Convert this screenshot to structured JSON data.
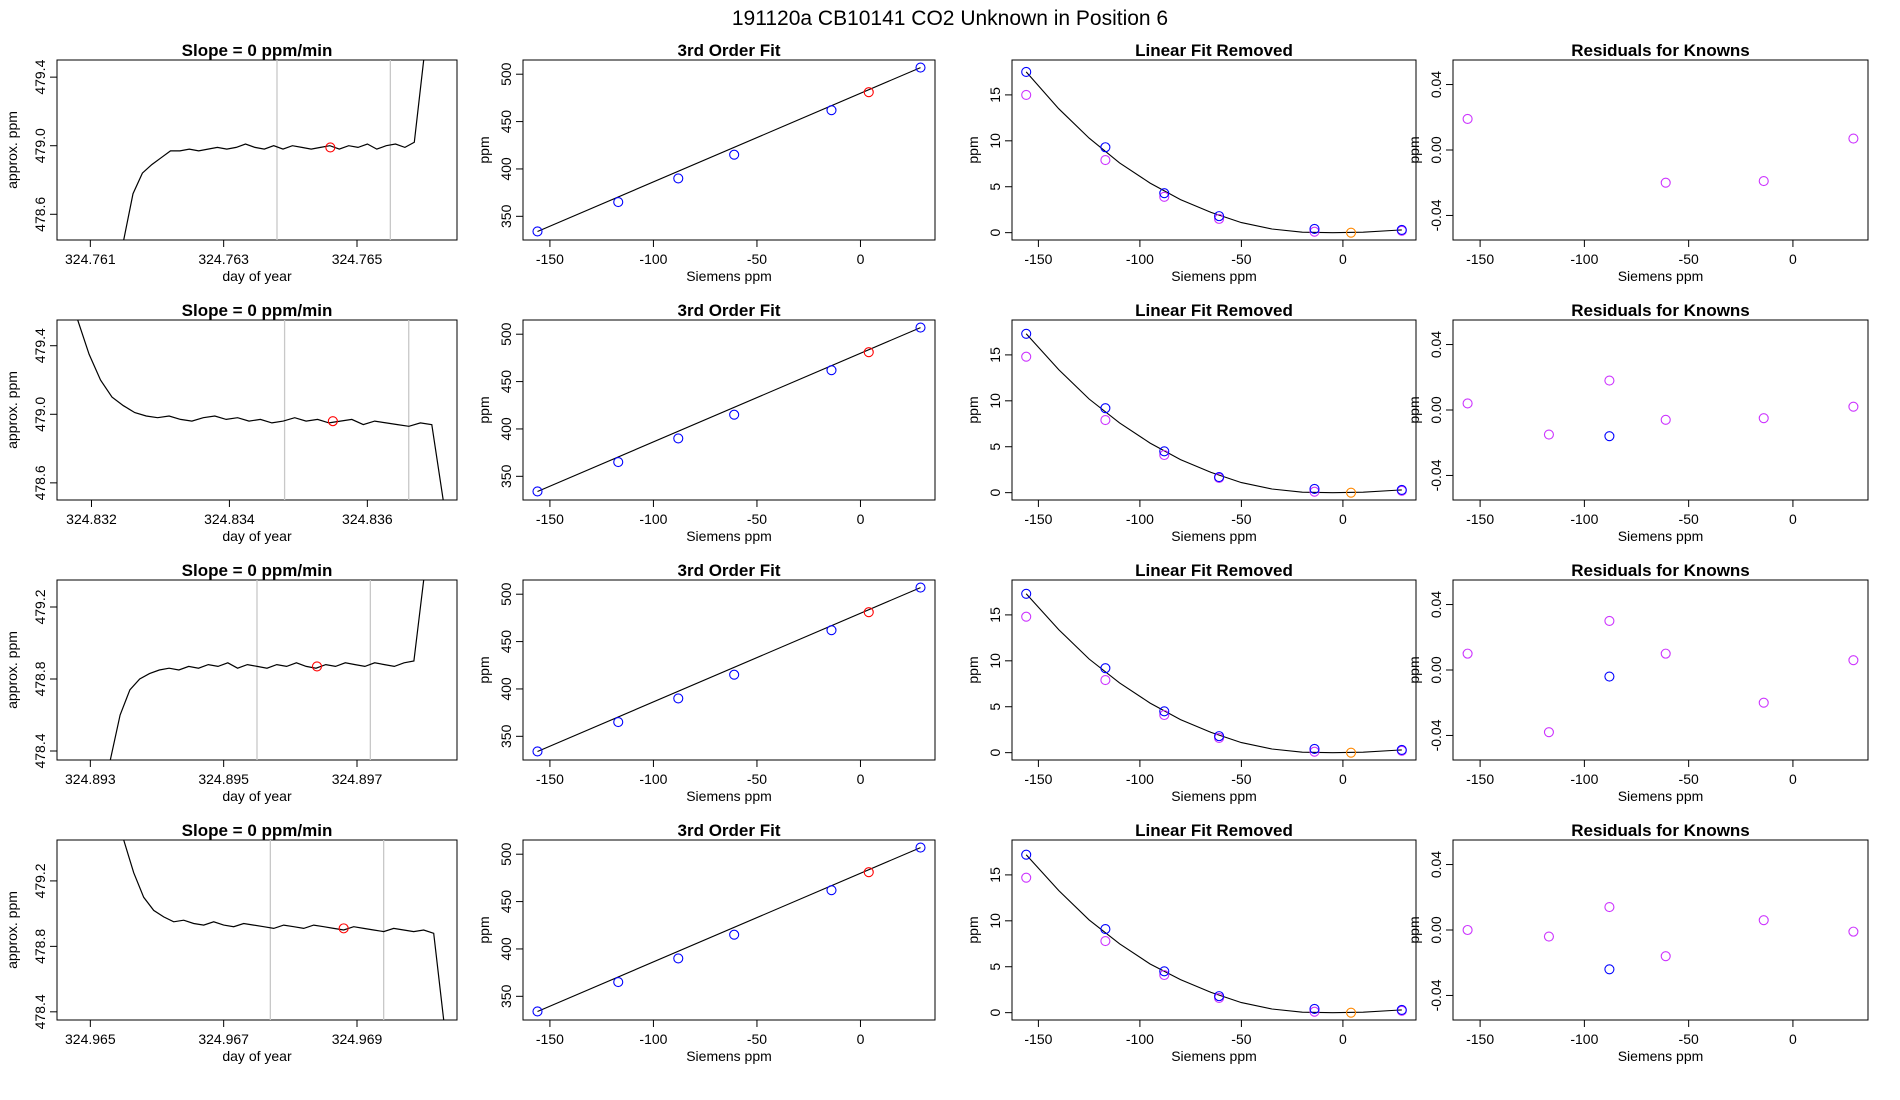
{
  "figure": {
    "title": "191120a     CB10141    CO2 Unknown in Position  6"
  },
  "colors": {
    "trace": "#000000",
    "vline": "#c8c8c8",
    "known": "#0000ff",
    "unknown": "#ff0000",
    "removed_known": "#cc33ff",
    "removed_unknown": "#ff8800",
    "residual": "#cc33ff"
  },
  "chart_data": [
    {
      "type": "line",
      "row": 1,
      "col": 1,
      "title": "Slope =  0  ppm/min",
      "xlabel": "day of year",
      "ylabel": "approx. ppm",
      "xlim": [
        324.7605,
        324.7665
      ],
      "ylim": [
        478.45,
        479.5
      ],
      "xticks": [
        324.761,
        324.763,
        324.765
      ],
      "xtick_labels": [
        "324.761",
        "324.763",
        "324.765"
      ],
      "yticks": [
        478.6,
        479.0,
        479.4
      ],
      "ytick_labels": [
        "478.6",
        "479.0",
        "479.4"
      ],
      "vlines": [
        324.7638,
        324.7655
      ],
      "marker": {
        "x": 324.7646,
        "y": 478.99
      },
      "trace": {
        "x0": 324.7615,
        "x1": 324.766,
        "y": [
          478.45,
          478.72,
          478.84,
          478.89,
          478.93,
          478.97,
          478.97,
          478.98,
          478.97,
          478.98,
          478.99,
          478.98,
          478.99,
          479.01,
          478.99,
          478.98,
          479.0,
          478.98,
          479.0,
          478.99,
          478.98,
          478.99,
          479.0,
          478.98,
          479.0,
          478.99,
          479.01,
          478.98,
          479.0,
          479.01,
          478.99,
          479.02,
          479.5
        ]
      }
    },
    {
      "type": "scatter",
      "row": 1,
      "col": 2,
      "title": "3rd Order Fit",
      "xlabel": "Siemens ppm",
      "ylabel": "ppm",
      "xlim": [
        -163,
        36
      ],
      "ylim": [
        325,
        515
      ],
      "xticks": [
        -150,
        -100,
        -50,
        0
      ],
      "xtick_labels": [
        "-150",
        "-100",
        "-50",
        "0"
      ],
      "yticks": [
        350,
        400,
        450,
        500
      ],
      "ytick_labels": [
        "350",
        "400",
        "450",
        "500"
      ],
      "known_x": [
        -156,
        -117,
        -88,
        -61,
        -14,
        29
      ],
      "known_y": [
        334,
        365,
        390,
        415,
        462,
        507
      ],
      "unknown": {
        "x": 4,
        "y": 481
      },
      "fit": {
        "x": [
          -156,
          29
        ],
        "y": [
          334,
          507
        ]
      }
    },
    {
      "type": "scatter",
      "row": 1,
      "col": 3,
      "title": "Linear Fit Removed",
      "xlabel": "Siemens ppm",
      "ylabel": "ppm",
      "xlim": [
        -163,
        36
      ],
      "ylim": [
        -0.8,
        18.8
      ],
      "xticks": [
        -150,
        -100,
        -50,
        0
      ],
      "xtick_labels": [
        "-150",
        "-100",
        "-50",
        "0"
      ],
      "yticks": [
        0,
        5,
        10,
        15
      ],
      "ytick_labels": [
        "0",
        "5",
        "10",
        "15"
      ],
      "known_x": [
        -156,
        -117,
        -88,
        -61,
        -14,
        29
      ],
      "known_y": [
        17.5,
        9.3,
        4.3,
        1.8,
        0.4,
        0.3
      ],
      "magenta_x": [
        -156,
        -117,
        -88,
        -61,
        -14,
        29
      ],
      "magenta_y": [
        15.0,
        7.9,
        3.9,
        1.5,
        0.1,
        0.2
      ],
      "unknown": {
        "x": 4,
        "y": 0.0
      },
      "fit": {
        "x": [
          -156,
          -140,
          -125,
          -110,
          -95,
          -80,
          -65,
          -50,
          -35,
          -20,
          -5,
          10,
          29
        ],
        "y": [
          17.5,
          13.5,
          10.3,
          7.6,
          5.4,
          3.6,
          2.2,
          1.1,
          0.4,
          0.05,
          0.0,
          0.05,
          0.3
        ]
      }
    },
    {
      "type": "scatter",
      "row": 1,
      "col": 4,
      "title": "Residuals for Knowns",
      "xlabel": "Siemens ppm",
      "ylabel": "ppm",
      "xlim": [
        -163,
        36
      ],
      "ylim": [
        -0.055,
        0.055
      ],
      "xticks": [
        -150,
        -100,
        -50,
        0
      ],
      "xtick_labels": [
        "-150",
        "-100",
        "-50",
        "0"
      ],
      "yticks": [
        -0.04,
        0.0,
        0.04
      ],
      "ytick_labels": [
        "-0.04",
        "0.00",
        "0.04"
      ],
      "magenta_x": [
        -156,
        -61,
        -14,
        29
      ],
      "magenta_y": [
        0.019,
        -0.02,
        -0.019,
        0.007
      ],
      "blue_x": [],
      "blue_y": []
    },
    {
      "type": "line",
      "row": 2,
      "col": 1,
      "title": "Slope =  0  ppm/min",
      "xlabel": "day of year",
      "ylabel": "approx. ppm",
      "xlim": [
        324.8315,
        324.8373
      ],
      "ylim": [
        478.5,
        479.55
      ],
      "xticks": [
        324.832,
        324.834,
        324.836
      ],
      "xtick_labels": [
        "324.832",
        "324.834",
        "324.836"
      ],
      "vlines": [
        324.8348,
        324.8366
      ],
      "yticks": [
        478.6,
        479.0,
        479.4
      ],
      "ytick_labels": [
        "478.6",
        "479.0",
        "479.4"
      ],
      "marker": {
        "x": 324.8355,
        "y": 478.96
      },
      "trace": {
        "x0": 324.8318,
        "x1": 324.8371,
        "y": [
          479.55,
          479.35,
          479.2,
          479.1,
          479.05,
          479.01,
          478.99,
          478.98,
          478.99,
          478.97,
          478.96,
          478.98,
          478.99,
          478.97,
          478.98,
          478.96,
          478.97,
          478.95,
          478.96,
          478.98,
          478.96,
          478.97,
          478.95,
          478.96,
          478.97,
          478.94,
          478.96,
          478.95,
          478.94,
          478.93,
          478.95,
          478.94,
          478.5
        ]
      }
    },
    {
      "type": "scatter",
      "row": 2,
      "col": 2,
      "title": "3rd Order Fit",
      "xlabel": "Siemens ppm",
      "ylabel": "ppm",
      "xlim": [
        -163,
        36
      ],
      "ylim": [
        325,
        515
      ],
      "xticks": [
        -150,
        -100,
        -50,
        0
      ],
      "xtick_labels": [
        "-150",
        "-100",
        "-50",
        "0"
      ],
      "yticks": [
        350,
        400,
        450,
        500
      ],
      "ytick_labels": [
        "350",
        "400",
        "450",
        "500"
      ],
      "known_x": [
        -156,
        -117,
        -88,
        -61,
        -14,
        29
      ],
      "known_y": [
        334,
        365,
        390,
        415,
        462,
        507
      ],
      "unknown": {
        "x": 4,
        "y": 481
      },
      "fit": {
        "x": [
          -156,
          29
        ],
        "y": [
          334,
          507
        ]
      }
    },
    {
      "type": "scatter",
      "row": 2,
      "col": 3,
      "title": "Linear Fit Removed",
      "xlabel": "Siemens ppm",
      "ylabel": "ppm",
      "xlim": [
        -163,
        36
      ],
      "ylim": [
        -0.8,
        18.8
      ],
      "xticks": [
        -150,
        -100,
        -50,
        0
      ],
      "xtick_labels": [
        "-150",
        "-100",
        "-50",
        "0"
      ],
      "yticks": [
        0,
        5,
        10,
        15
      ],
      "ytick_labels": [
        "0",
        "5",
        "10",
        "15"
      ],
      "known_x": [
        -156,
        -117,
        -88,
        -61,
        -14,
        29
      ],
      "known_y": [
        17.3,
        9.2,
        4.5,
        1.7,
        0.4,
        0.3
      ],
      "magenta_x": [
        -156,
        -117,
        -88,
        -61,
        -14,
        29
      ],
      "magenta_y": [
        14.8,
        7.9,
        4.1,
        1.6,
        0.1,
        0.2
      ],
      "unknown": {
        "x": 4,
        "y": 0.0
      },
      "fit": {
        "x": [
          -156,
          -140,
          -125,
          -110,
          -95,
          -80,
          -65,
          -50,
          -35,
          -20,
          -5,
          10,
          29
        ],
        "y": [
          17.3,
          13.4,
          10.2,
          7.6,
          5.4,
          3.6,
          2.2,
          1.1,
          0.4,
          0.05,
          0.0,
          0.05,
          0.3
        ]
      }
    },
    {
      "type": "scatter",
      "row": 2,
      "col": 4,
      "title": "Residuals for Knowns",
      "xlabel": "Siemens ppm",
      "ylabel": "ppm",
      "xlim": [
        -163,
        36
      ],
      "ylim": [
        -0.055,
        0.055
      ],
      "xticks": [
        -150,
        -100,
        -50,
        0
      ],
      "xtick_labels": [
        "-150",
        "-100",
        "-50",
        "0"
      ],
      "yticks": [
        -0.04,
        0.0,
        0.04
      ],
      "ytick_labels": [
        "-0.04",
        "0.00",
        "0.04"
      ],
      "magenta_x": [
        -156,
        -117,
        -88,
        -61,
        -14,
        29
      ],
      "magenta_y": [
        0.004,
        -0.015,
        0.018,
        -0.006,
        -0.005,
        0.002
      ],
      "blue_x": [
        -88
      ],
      "blue_y": [
        -0.016
      ]
    },
    {
      "type": "line",
      "row": 3,
      "col": 1,
      "title": "Slope =  0  ppm/min",
      "xlabel": "day of year",
      "ylabel": "approx. ppm",
      "xlim": [
        324.8925,
        324.8985
      ],
      "ylim": [
        478.35,
        479.35
      ],
      "xticks": [
        324.893,
        324.895,
        324.897
      ],
      "xtick_labels": [
        "324.893",
        "324.895",
        "324.897"
      ],
      "yticks": [
        478.4,
        478.8,
        479.2
      ],
      "ytick_labels": [
        "478.4",
        "478.8",
        "479.2"
      ],
      "vlines": [
        324.8955,
        324.8972
      ],
      "marker": {
        "x": 324.8964,
        "y": 478.87
      },
      "trace": {
        "x0": 324.8933,
        "x1": 324.898,
        "y": [
          478.35,
          478.6,
          478.74,
          478.8,
          478.83,
          478.85,
          478.86,
          478.85,
          478.87,
          478.86,
          478.88,
          478.87,
          478.89,
          478.86,
          478.88,
          478.87,
          478.86,
          478.88,
          478.87,
          478.89,
          478.87,
          478.86,
          478.88,
          478.87,
          478.89,
          478.88,
          478.87,
          478.89,
          478.88,
          478.87,
          478.89,
          478.9,
          479.35
        ]
      }
    },
    {
      "type": "scatter",
      "row": 3,
      "col": 2,
      "title": "3rd Order Fit",
      "xlabel": "Siemens ppm",
      "ylabel": "ppm",
      "xlim": [
        -163,
        36
      ],
      "ylim": [
        325,
        515
      ],
      "xticks": [
        -150,
        -100,
        -50,
        0
      ],
      "xtick_labels": [
        "-150",
        "-100",
        "-50",
        "0"
      ],
      "yticks": [
        350,
        400,
        450,
        500
      ],
      "ytick_labels": [
        "350",
        "400",
        "450",
        "500"
      ],
      "known_x": [
        -156,
        -117,
        -88,
        -61,
        -14,
        29
      ],
      "known_y": [
        334,
        365,
        390,
        415,
        462,
        507
      ],
      "unknown": {
        "x": 4,
        "y": 481
      },
      "fit": {
        "x": [
          -156,
          29
        ],
        "y": [
          334,
          507
        ]
      }
    },
    {
      "type": "scatter",
      "row": 3,
      "col": 3,
      "title": "Linear Fit Removed",
      "xlabel": "Siemens ppm",
      "ylabel": "ppm",
      "xlim": [
        -163,
        36
      ],
      "ylim": [
        -0.8,
        18.8
      ],
      "xticks": [
        -150,
        -100,
        -50,
        0
      ],
      "xtick_labels": [
        "-150",
        "-100",
        "-50",
        "0"
      ],
      "yticks": [
        0,
        5,
        10,
        15
      ],
      "ytick_labels": [
        "0",
        "5",
        "10",
        "15"
      ],
      "known_x": [
        -156,
        -117,
        -88,
        -61,
        -14,
        29
      ],
      "known_y": [
        17.3,
        9.2,
        4.5,
        1.8,
        0.4,
        0.3
      ],
      "magenta_x": [
        -156,
        -117,
        -88,
        -61,
        -14,
        29
      ],
      "magenta_y": [
        14.8,
        7.9,
        4.1,
        1.6,
        0.1,
        0.2
      ],
      "unknown": {
        "x": 4,
        "y": 0.0
      },
      "fit": {
        "x": [
          -156,
          -140,
          -125,
          -110,
          -95,
          -80,
          -65,
          -50,
          -35,
          -20,
          -5,
          10,
          29
        ],
        "y": [
          17.3,
          13.4,
          10.2,
          7.6,
          5.4,
          3.6,
          2.2,
          1.1,
          0.4,
          0.05,
          0.0,
          0.05,
          0.3
        ]
      }
    },
    {
      "type": "scatter",
      "row": 3,
      "col": 4,
      "title": "Residuals for Knowns",
      "xlabel": "Siemens ppm",
      "ylabel": "ppm",
      "xlim": [
        -163,
        36
      ],
      "ylim": [
        -0.055,
        0.055
      ],
      "xticks": [
        -150,
        -100,
        -50,
        0
      ],
      "xtick_labels": [
        "-150",
        "-100",
        "-50",
        "0"
      ],
      "yticks": [
        -0.04,
        0.0,
        0.04
      ],
      "ytick_labels": [
        "-0.04",
        "0.00",
        "0.04"
      ],
      "magenta_x": [
        -156,
        -117,
        -88,
        -61,
        -14,
        29
      ],
      "magenta_y": [
        0.01,
        -0.038,
        0.03,
        0.01,
        -0.02,
        0.006
      ],
      "blue_x": [
        -88
      ],
      "blue_y": [
        -0.004
      ]
    },
    {
      "type": "line",
      "row": 4,
      "col": 1,
      "title": "Slope =  0  ppm/min",
      "xlabel": "day of year",
      "ylabel": "approx. ppm",
      "xlim": [
        324.9645,
        324.9705
      ],
      "ylim": [
        478.35,
        479.45
      ],
      "xticks": [
        324.965,
        324.967,
        324.969
      ],
      "xtick_labels": [
        "324.965",
        "324.967",
        "324.969"
      ],
      "yticks": [
        478.4,
        478.8,
        479.2
      ],
      "ytick_labels": [
        "478.4",
        "478.8",
        "479.2"
      ],
      "vlines": [
        324.9677,
        324.9694
      ],
      "marker": {
        "x": 324.9688,
        "y": 478.91
      },
      "trace": {
        "x0": 324.9655,
        "x1": 324.9703,
        "y": [
          479.45,
          479.25,
          479.1,
          479.02,
          478.98,
          478.95,
          478.96,
          478.94,
          478.93,
          478.95,
          478.93,
          478.92,
          478.94,
          478.93,
          478.92,
          478.91,
          478.93,
          478.92,
          478.91,
          478.93,
          478.92,
          478.91,
          478.9,
          478.92,
          478.91,
          478.9,
          478.89,
          478.91,
          478.9,
          478.89,
          478.9,
          478.88,
          478.35
        ]
      }
    },
    {
      "type": "scatter",
      "row": 4,
      "col": 2,
      "title": "3rd Order Fit",
      "xlabel": "Siemens ppm",
      "ylabel": "ppm",
      "xlim": [
        -163,
        36
      ],
      "ylim": [
        325,
        515
      ],
      "xticks": [
        -150,
        -100,
        -50,
        0
      ],
      "xtick_labels": [
        "-150",
        "-100",
        "-50",
        "0"
      ],
      "yticks": [
        350,
        400,
        450,
        500
      ],
      "ytick_labels": [
        "350",
        "400",
        "450",
        "500"
      ],
      "known_x": [
        -156,
        -117,
        -88,
        -61,
        -14,
        29
      ],
      "known_y": [
        334,
        365,
        390,
        415,
        462,
        507
      ],
      "unknown": {
        "x": 4,
        "y": 481
      },
      "fit": {
        "x": [
          -156,
          29
        ],
        "y": [
          334,
          507
        ]
      }
    },
    {
      "type": "scatter",
      "row": 4,
      "col": 3,
      "title": "Linear Fit Removed",
      "xlabel": "Siemens ppm",
      "ylabel": "ppm",
      "xlim": [
        -163,
        36
      ],
      "ylim": [
        -0.8,
        18.8
      ],
      "xticks": [
        -150,
        -100,
        -50,
        0
      ],
      "xtick_labels": [
        "-150",
        "-100",
        "-50",
        "0"
      ],
      "yticks": [
        0,
        5,
        10,
        15
      ],
      "ytick_labels": [
        "0",
        "5",
        "10",
        "15"
      ],
      "known_x": [
        -156,
        -117,
        -88,
        -61,
        -14,
        29
      ],
      "known_y": [
        17.2,
        9.1,
        4.5,
        1.8,
        0.4,
        0.3
      ],
      "magenta_x": [
        -156,
        -117,
        -88,
        -61,
        -14,
        29
      ],
      "magenta_y": [
        14.7,
        7.8,
        4.1,
        1.6,
        0.1,
        0.2
      ],
      "unknown": {
        "x": 4,
        "y": 0.0
      },
      "fit": {
        "x": [
          -156,
          -140,
          -125,
          -110,
          -95,
          -80,
          -65,
          -50,
          -35,
          -20,
          -5,
          10,
          29
        ],
        "y": [
          17.2,
          13.3,
          10.1,
          7.5,
          5.3,
          3.6,
          2.2,
          1.1,
          0.4,
          0.05,
          0.0,
          0.05,
          0.3
        ]
      }
    },
    {
      "type": "scatter",
      "row": 4,
      "col": 4,
      "title": "Residuals for Knowns",
      "xlabel": "Siemens ppm",
      "ylabel": "ppm",
      "xlim": [
        -163,
        36
      ],
      "ylim": [
        -0.055,
        0.055
      ],
      "xticks": [
        -150,
        -100,
        -50,
        0
      ],
      "xtick_labels": [
        "-150",
        "-100",
        "-50",
        "0"
      ],
      "yticks": [
        -0.04,
        0.0,
        0.04
      ],
      "ytick_labels": [
        "-0.04",
        "0.00",
        "0.04"
      ],
      "magenta_x": [
        -156,
        -117,
        -88,
        -61,
        -14,
        29
      ],
      "magenta_y": [
        0.0,
        -0.004,
        0.014,
        -0.016,
        0.006,
        -0.001
      ],
      "blue_x": [
        -88
      ],
      "blue_y": [
        -0.024
      ]
    }
  ]
}
